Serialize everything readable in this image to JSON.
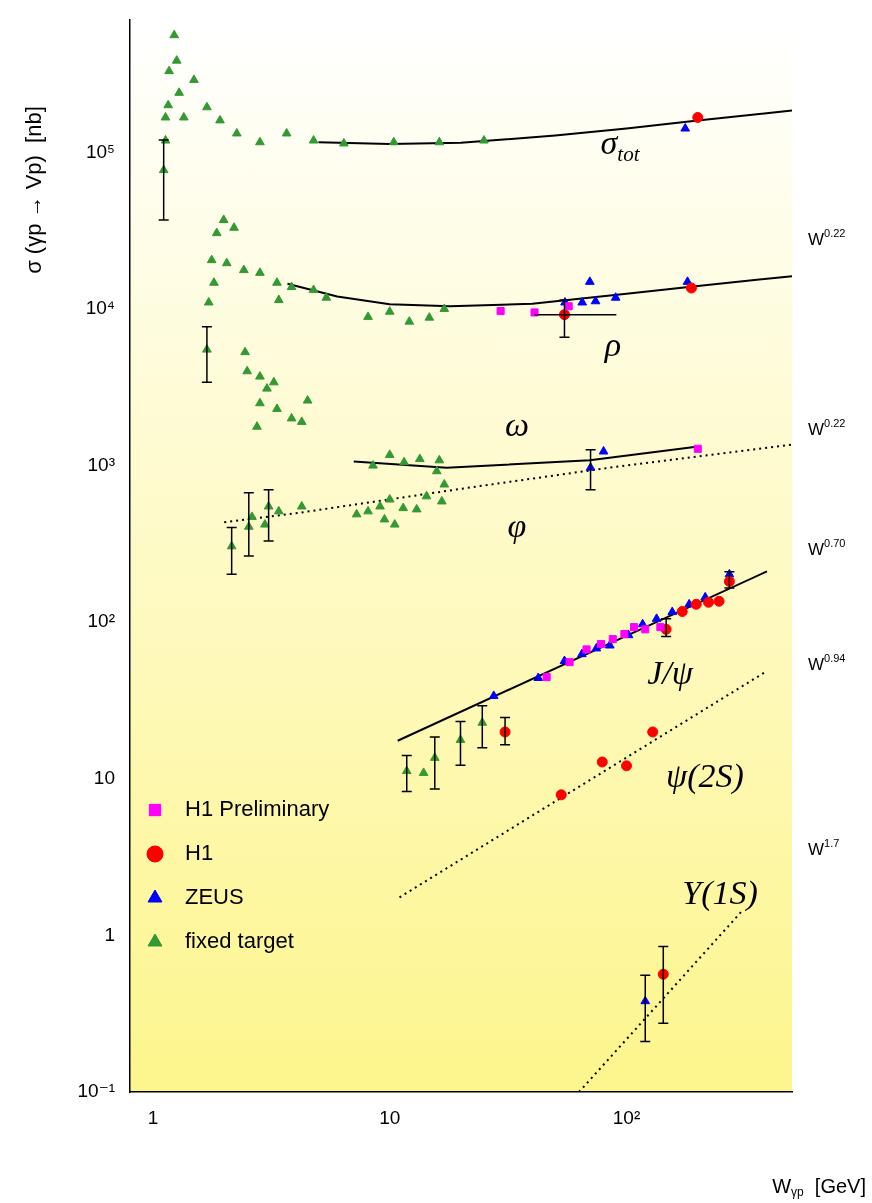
{
  "chart_data": {
    "type": "scatter",
    "xlabel": "W$_{γp}$  [GeV]",
    "ylabel": "σ (γp → Vp)  [nb]",
    "log": "xy",
    "grid": false,
    "legend": "bottom left",
    "xlim": [
      0.8,
      500
    ],
    "ylim": [
      0.1,
      700000
    ],
    "xticks": [
      1,
      10,
      {
        "value": 100,
        "label": "10²"
      }
    ],
    "yticks": [
      {
        "value": 0.1,
        "label": "10⁻¹"
      },
      1,
      10,
      {
        "value": 100,
        "label": "10²"
      },
      {
        "value": 1000,
        "label": "10³"
      },
      {
        "value": 10000,
        "label": "10⁴"
      },
      {
        "value": 100000,
        "label": "10⁵"
      }
    ],
    "series": [
      {
        "name": "H1 Preliminary",
        "color": "#ff00ff",
        "marker": "square",
        "x": [
          29.4,
          40.9,
          57,
          200,
          46,
          57.5,
          67.8,
          78,
          87.5,
          98,
          107.6,
          120,
          139
        ],
        "values": [
          9700,
          9500,
          10400,
          1280,
          44.6,
          55.6,
          67,
          72.5,
          78,
          84,
          93,
          90,
          93
        ]
      },
      {
        "name": "H1",
        "color": "#ff0000",
        "marker": "circle",
        "x": [
          200,
          54.7,
          188,
          30.7,
          147,
          172,
          197,
          222,
          246,
          272,
          53,
          79,
          100,
          129,
          143
        ],
        "values": [
          167000,
          9200,
          13600,
          19.9,
          90,
          117,
          130,
          134,
          136,
          182,
          7.9,
          12.8,
          12.1,
          19.9,
          0.565
        ],
        "errors": [
          null,
          [
            6600,
            11400
          ],
          null,
          [
            16.5,
            24.6
          ],
          [
            81,
            105
          ],
          null,
          null,
          null,
          null,
          [
            165,
            210
          ],
          null,
          null,
          null,
          null,
          [
            0.275,
            0.85
          ]
        ],
        "xerrors": [
          null,
          [
            40.9,
            90.6
          ],
          null,
          null,
          null,
          null,
          null,
          null,
          null,
          null,
          null,
          null,
          null,
          null,
          null
        ]
      },
      {
        "name": "ZEUS",
        "color": "#0000ff",
        "marker": "triangle",
        "x": [
          177,
          70,
          55,
          65,
          74,
          90,
          181,
          70.5,
          80,
          27.5,
          42.4,
          54.7,
          64.8,
          74.6,
          85,
          102,
          117,
          134,
          156,
          184,
          215,
          272,
          120
        ],
        "values": [
          142000,
          14900,
          11000,
          11000,
          11200,
          11800,
          14900,
          970,
          1230,
          33.8,
          44,
          56.5,
          62.5,
          68,
          71,
          82.6,
          97,
          105,
          116,
          130,
          144,
          202,
          0.38
        ],
        "errors": [
          null,
          null,
          null,
          null,
          null,
          null,
          null,
          [
            700,
            1260
          ],
          null,
          null,
          null,
          null,
          null,
          null,
          null,
          null,
          null,
          null,
          null,
          null,
          null,
          null,
          [
            0.21,
            0.556
          ]
        ]
      },
      {
        "name": "fixed target",
        "color": "#339933",
        "marker": "triangle",
        "x": [
          1.11,
          1.13,
          1.13,
          1.16,
          1.17,
          1.23,
          1.26,
          1.29,
          1.35,
          1.49,
          1.69,
          1.92,
          2.26,
          2.83,
          3.67,
          4.77,
          6.4,
          10.4,
          16.2,
          25,
          1.72,
          1.77,
          1.81,
          1.86,
          1.99,
          2.05,
          2.2,
          2.42,
          2.83,
          3.34,
          3.4,
          3.85,
          4.77,
          5.4,
          8.1,
          10,
          12.1,
          14.7,
          17,
          1.69,
          2.45,
          2.5,
          2.83,
          3.03,
          3.24,
          2.83,
          3.34,
          2.75,
          3.85,
          4.25,
          4.5,
          8.5,
          10,
          11.5,
          13.4,
          16.2,
          15.8,
          2.15,
          2.54,
          2.62,
          2.97,
          3.08,
          3.4,
          4.25,
          7.25,
          8.1,
          9.1,
          10,
          9.5,
          10.5,
          11.4,
          13,
          14.3,
          16.6,
          17,
          11.8,
          13.9,
          15.5,
          19.9,
          24.6
        ],
        "values": [
          77000,
          119000,
          167000,
          200000,
          330000,
          560000,
          385000,
          240000,
          167000,
          290000,
          194000,
          160000,
          132000,
          116000,
          132000,
          119000,
          114000,
          116000,
          116000,
          119000,
          11000,
          20500,
          14700,
          30500,
          37000,
          19600,
          33000,
          17700,
          17000,
          14700,
          11400,
          13800,
          13200,
          11800,
          8900,
          9600,
          8300,
          8800,
          10000,
          5500,
          5300,
          4000,
          3700,
          3100,
          3400,
          2500,
          2300,
          1770,
          2000,
          1900,
          2600,
          1000,
          1170,
          1050,
          1100,
          1080,
          920,
          305,
          407,
          470,
          420,
          548,
          510,
          548,
          488,
          510,
          548,
          607,
          453,
          420,
          535,
          525,
          636,
          590,
          757,
          11.2,
          10.9,
          13.6,
          17.7,
          22.8
        ],
        "errors": [
          [
            37000,
            120000
          ],
          null,
          null,
          null,
          null,
          null,
          null,
          null,
          null,
          null,
          null,
          null,
          null,
          null,
          null,
          null,
          null,
          null,
          null,
          null,
          null,
          null,
          null,
          null,
          null,
          null,
          null,
          null,
          null,
          null,
          null,
          null,
          null,
          null,
          null,
          null,
          null,
          null,
          null,
          [
            3400,
            7700
          ],
          null,
          null,
          null,
          null,
          null,
          null,
          null,
          null,
          null,
          null,
          null,
          null,
          null,
          null,
          null,
          null,
          null,
          [
            202,
            403
          ],
          [
            265,
            670
          ],
          null,
          null,
          [
            330,
            700
          ],
          null,
          null,
          null,
          null,
          null,
          null,
          null,
          null,
          null,
          null,
          null,
          null,
          null,
          [
            8.3,
            14.1
          ],
          null,
          [
            8.6,
            18.5
          ],
          [
            12.2,
            23.2
          ],
          [
            15.8,
            29.3
          ]
        ]
      },
      {
        "type": "line",
        "color": "#000000",
        "marker": "none",
        "line_style": "solid",
        "x": [
          5,
          10,
          20,
          50,
          100,
          200,
          500
        ],
        "values": [
          116000,
          113000,
          115000,
          128000,
          142000,
          160000,
          185000
        ]
      },
      {
        "type": "line",
        "color": "#000000",
        "marker": "none",
        "line_style": "solid",
        "x": [
          3.7,
          6,
          10,
          18,
          40,
          100,
          200,
          500
        ],
        "values": [
          14500,
          12000,
          10700,
          10400,
          10800,
          12500,
          14000,
          16200
        ]
      },
      {
        "type": "line",
        "color": "#000000",
        "marker": "none",
        "line_style": "solid",
        "x": [
          7.05,
          17.4,
          70,
          197
        ],
        "values": [
          1060,
          970,
          1080,
          1320
        ]
      },
      {
        "type": "line",
        "color": "#000000",
        "marker": "none",
        "line_style": "dotted",
        "x": [
          2,
          4.17,
          23.3,
          85,
          500
        ],
        "values": [
          434,
          500,
          735,
          970,
          1360
        ]
      },
      {
        "type": "line",
        "color": "#000000",
        "marker": "none",
        "line_style": "solid",
        "x": [
          10.8,
          392
        ],
        "values": [
          17.5,
          211
        ]
      },
      {
        "type": "line",
        "color": "#000000",
        "marker": "none",
        "line_style": "dotted",
        "x": [
          11,
          392
        ],
        "values": [
          1.75,
          48.8
        ]
      },
      {
        "type": "line",
        "color": "#000000",
        "marker": "none",
        "line_style": "dotted",
        "x": [
          63,
          306
        ],
        "values": [
          0.1,
          1.42
        ]
      }
    ],
    "annotations": [
      "σ$_{tot}$",
      "ρ",
      "ω",
      "φ",
      "J/ψ",
      "ψ(2S)",
      "Υ(1S)",
      "W$^{0.22}$",
      "W$^{0.22}$",
      "W$^{0.70}$",
      "W$^{0.94}$",
      "W$^{1.7}$"
    ]
  }
}
